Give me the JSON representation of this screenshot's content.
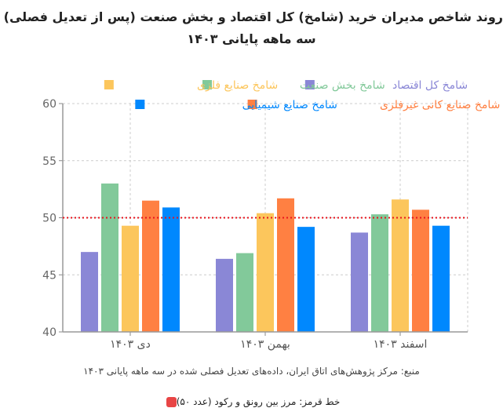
{
  "chart_data": {
    "type": "bar",
    "title_lines": [
      "روند شاخص مدیران خرید (شامخ) کل اقتصاد و بخش صنعت (پس از تعدیل فصلی) -",
      "سه ماهه پایانی ۱۴۰۳"
    ],
    "categories": [
      "دی ۱۴۰۳",
      "بهمن ۱۴۰۳",
      "اسفند ۱۴۰۳"
    ],
    "series": [
      {
        "name": "شامخ کل اقتصاد",
        "color": "#8a87d6",
        "values": [
          47.0,
          46.4,
          48.7
        ]
      },
      {
        "name": "شامخ بخش صنعت",
        "color": "#82c99a",
        "values": [
          53.0,
          46.9,
          50.3
        ]
      },
      {
        "name": "شامخ صنایع فلزی",
        "color": "#fcc65c",
        "values": [
          49.3,
          50.4,
          51.6
        ]
      },
      {
        "name": "شامخ صنایع کانی غیرفلزی",
        "color": "#ff8042",
        "values": [
          51.5,
          51.7,
          50.7
        ]
      },
      {
        "name": "شامخ صنایع شیمیایی",
        "color": "#0088fe",
        "values": [
          50.9,
          49.2,
          49.3
        ]
      }
    ],
    "ylim": [
      40,
      60
    ],
    "yticks": [
      40,
      45,
      50,
      55,
      60
    ],
    "reference_line": {
      "y": 50,
      "color": "#e8141e",
      "style": "dotted"
    },
    "grid": true,
    "legend_placement": "top"
  },
  "source": "منبع: مرکز پژوهش‌های اتاق ایران، داده‌های تعدیل فصلی شده در سه ماهه پایانی ۱۴۰۳",
  "note": "خط قرمز: مرز بین رونق و رکود (عدد ۵۰)"
}
